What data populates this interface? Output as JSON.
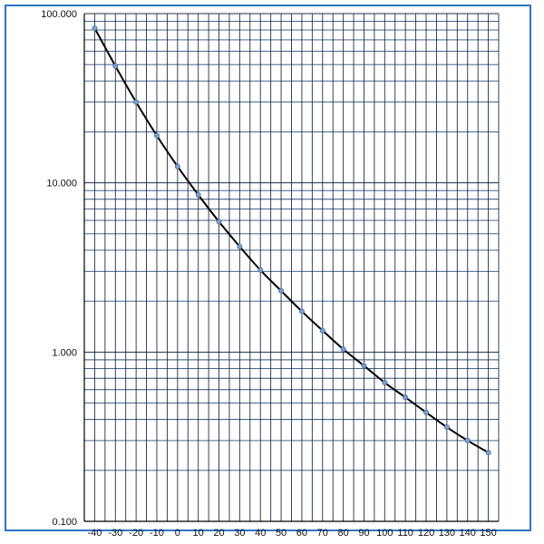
{
  "chart_data": {
    "type": "line",
    "title": "",
    "xlabel": "",
    "ylabel": "",
    "x_scale": "linear",
    "y_scale": "log",
    "xlim": [
      -45,
      155
    ],
    "ylim": [
      0.1,
      100
    ],
    "x_ticks": [
      -40,
      -30,
      -20,
      -10,
      0,
      10,
      20,
      30,
      40,
      50,
      60,
      70,
      80,
      90,
      100,
      110,
      120,
      130,
      140,
      150
    ],
    "x_tick_labels": [
      "-40",
      "-30",
      "-20",
      "-10",
      "0",
      "10",
      "20",
      "30",
      "40",
      "50",
      "60",
      "70",
      "80",
      "90",
      "100",
      "110",
      "120",
      "130",
      "140",
      "150"
    ],
    "y_ticks": [
      0.1,
      1,
      10,
      100
    ],
    "y_tick_labels": [
      "0.100",
      "1.000",
      "10.000",
      "100.000"
    ],
    "grid": true,
    "legend": "none",
    "series": [
      {
        "x": [
          -40,
          -30,
          -20,
          -10,
          0,
          10,
          20,
          30,
          40,
          50,
          60,
          70,
          80,
          90,
          100,
          110,
          120,
          130,
          140,
          150
        ],
        "y": [
          82,
          49,
          30,
          19,
          12.5,
          8.5,
          5.9,
          4.2,
          3.05,
          2.3,
          1.74,
          1.34,
          1.04,
          0.83,
          0.66,
          0.54,
          0.44,
          0.36,
          0.3,
          0.255
        ],
        "line_color": "#000000",
        "marker_color": "#7a9fd0"
      }
    ]
  }
}
